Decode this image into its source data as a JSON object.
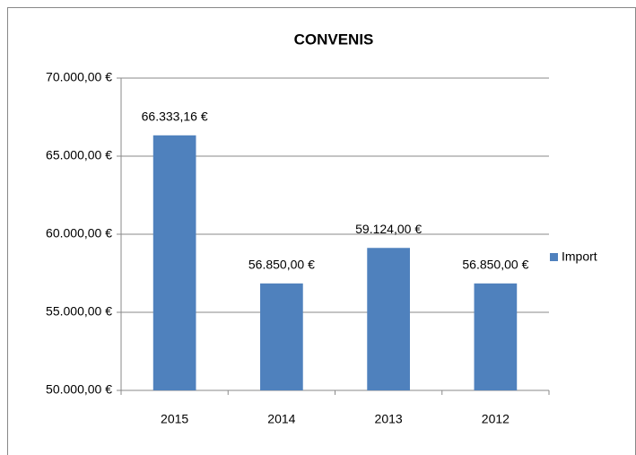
{
  "chart_data": {
    "type": "bar",
    "title": "CONVENIS",
    "categories": [
      "2015",
      "2014",
      "2013",
      "2012"
    ],
    "series": [
      {
        "name": "Import",
        "color": "#4f81bd",
        "values": [
          66333.16,
          56850,
          59124,
          56850
        ],
        "value_labels": [
          "66.333,16 €",
          "56.850,00 €",
          "59.124,00 €",
          "56.850,00 €"
        ]
      }
    ],
    "ylim": [
      50000,
      70000
    ],
    "yticks": [
      {
        "value": 50000,
        "label": "50.000,00 €"
      },
      {
        "value": 55000,
        "label": "55.000,00 €"
      },
      {
        "value": 60000,
        "label": "60.000,00 €"
      },
      {
        "value": 65000,
        "label": "65.000,00 €"
      },
      {
        "value": 70000,
        "label": "70.000,00 €"
      }
    ],
    "grid": true,
    "legend": "right"
  }
}
